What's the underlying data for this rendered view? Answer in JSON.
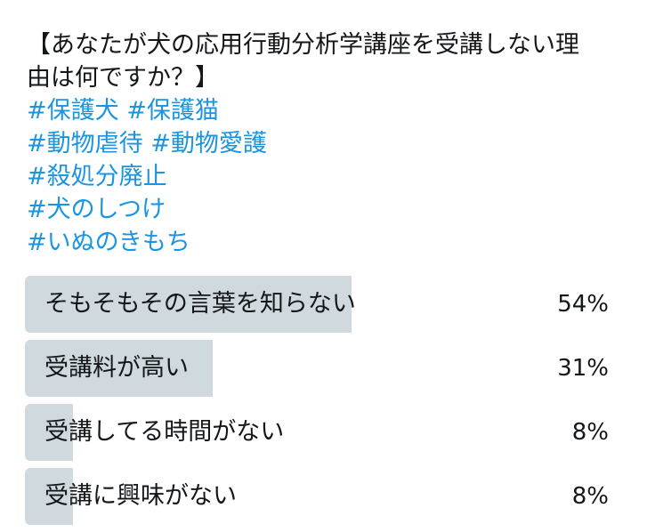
{
  "tweet": {
    "text_lines": [
      "【あなたが犬の応用行動分析学講座を受講しない理",
      "由は何ですか？】"
    ],
    "hashtag_lines": [
      [
        "#保護犬",
        "#保護猫"
      ],
      [
        "#動物虐待",
        "#動物愛護"
      ],
      [
        "#殺処分廃止"
      ],
      [
        "#犬のしつけ"
      ],
      [
        "#いぬのきもち"
      ]
    ]
  },
  "poll": {
    "bar_color": "#cfd9de",
    "options": [
      {
        "label": "そもそもその言葉を知らない",
        "percent_text": "54%",
        "percent": 54
      },
      {
        "label": "受講料が高い",
        "percent_text": "31%",
        "percent": 31
      },
      {
        "label": "受講してる時間がない",
        "percent_text": "8%",
        "percent": 8
      },
      {
        "label": "受講に興味がない",
        "percent_text": "8%",
        "percent": 8
      }
    ]
  }
}
